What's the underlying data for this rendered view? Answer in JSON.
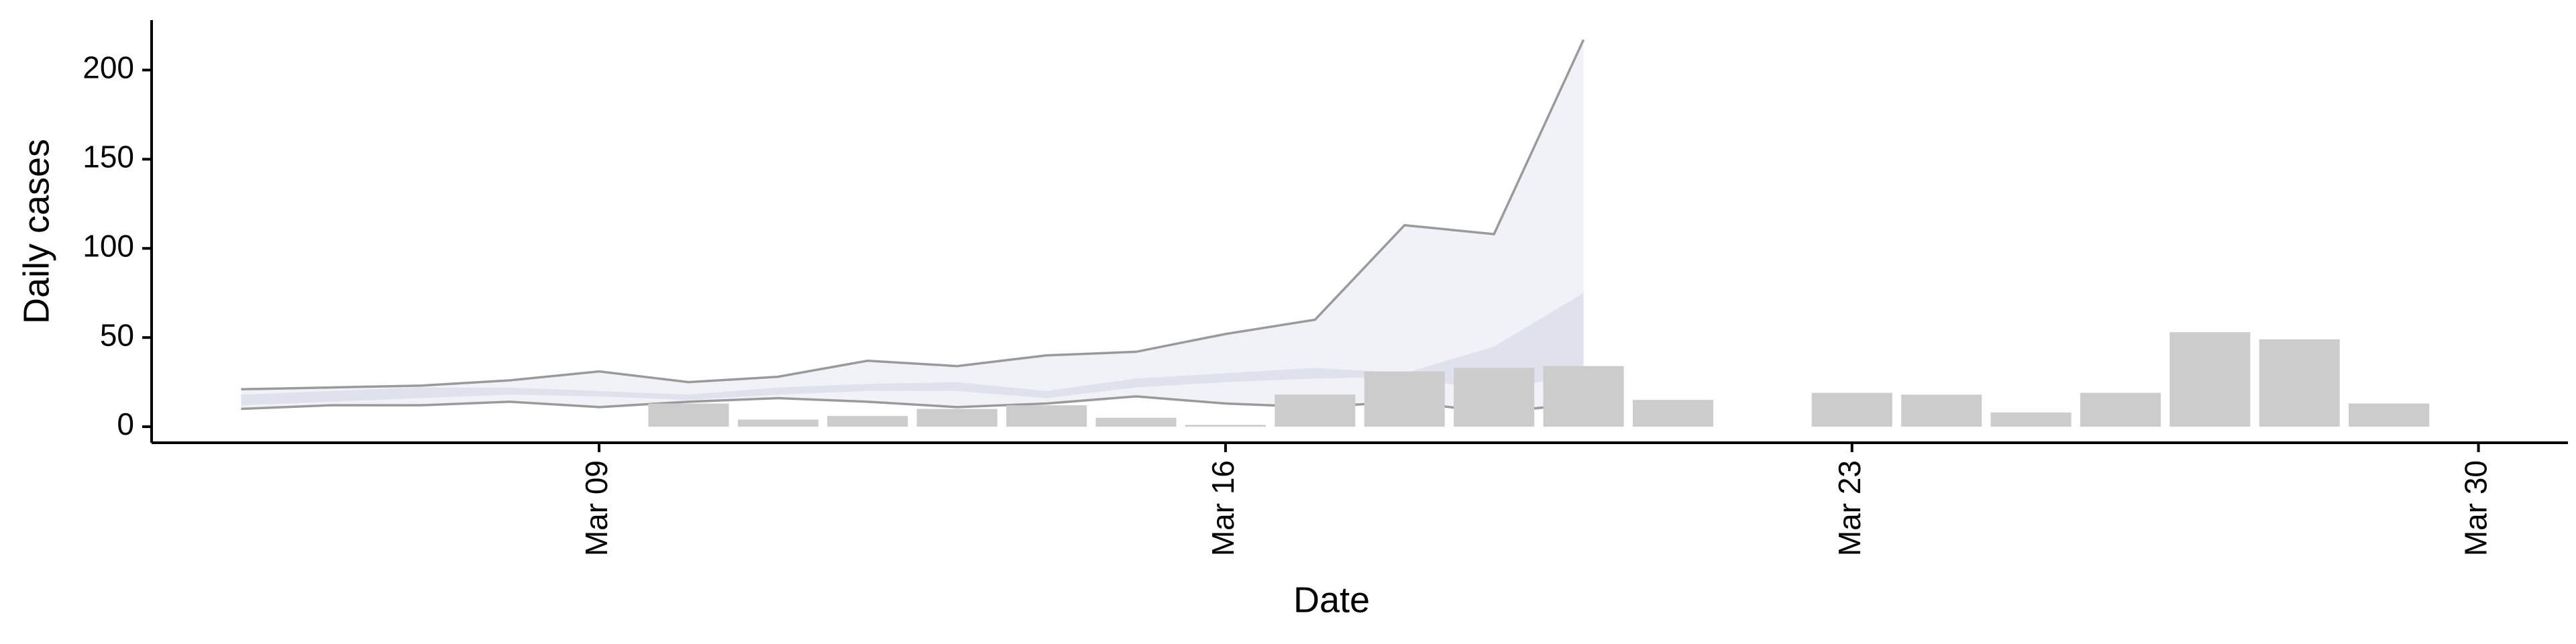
{
  "chart_data": {
    "type": "bar",
    "x_label": "Date",
    "y_label": "Daily cases",
    "x": [
      "Mar 10",
      "Mar 11",
      "Mar 12",
      "Mar 13",
      "Mar 14",
      "Mar 15",
      "Mar 16",
      "Mar 17",
      "Mar 18",
      "Mar 19",
      "Mar 20",
      "Mar 21",
      "Mar 23",
      "Mar 24",
      "Mar 25",
      "Mar 26",
      "Mar 27",
      "Mar 28",
      "Mar 29"
    ],
    "values": [
      13,
      4,
      6,
      10,
      12,
      5,
      1,
      18,
      31,
      33,
      34,
      15,
      19,
      18,
      8,
      19,
      53,
      49,
      13
    ],
    "color": "#cccccc",
    "bands": [
      {
        "x": [
          "Mar 05",
          "Mar 06",
          "Mar 07",
          "Mar 08",
          "Mar 09",
          "Mar 10",
          "Mar 11",
          "Mar 12",
          "Mar 13",
          "Mar 14",
          "Mar 15",
          "Mar 16",
          "Mar 17",
          "Mar 18",
          "Mar 19",
          "Mar 20"
        ],
        "upper": [
          21,
          22,
          23,
          26,
          31,
          25,
          28,
          37,
          34,
          40,
          42,
          52,
          60,
          113,
          108,
          217
        ],
        "lower": [
          10,
          12,
          12,
          14,
          11,
          14,
          16,
          14,
          11,
          13,
          17,
          13,
          11,
          14,
          8,
          13
        ],
        "color": "#eef0f6",
        "line_color": "#9a9a9a"
      },
      {
        "x": [
          "Mar 05",
          "Mar 06",
          "Mar 07",
          "Mar 08",
          "Mar 09",
          "Mar 10",
          "Mar 11",
          "Mar 12",
          "Mar 13",
          "Mar 14",
          "Mar 15",
          "Mar 16",
          "Mar 17",
          "Mar 18",
          "Mar 19",
          "Mar 20"
        ],
        "upper": [
          18,
          20,
          22,
          22,
          20,
          18,
          22,
          24,
          25,
          20,
          27,
          30,
          33,
          30,
          45,
          75
        ],
        "lower": [
          12,
          14,
          16,
          18,
          17,
          15,
          18,
          20,
          20,
          16,
          22,
          25,
          27,
          28,
          20,
          30
        ],
        "color": "#dcdfea"
      }
    ],
    "xlim": [
      "Mar 04",
      "Mar 31"
    ],
    "xticks": [
      "Mar 09",
      "Mar 16",
      "Mar 23",
      "Mar 30"
    ],
    "ylim": [
      -9,
      228
    ],
    "yticks": [
      0,
      50,
      100,
      150,
      200
    ]
  }
}
